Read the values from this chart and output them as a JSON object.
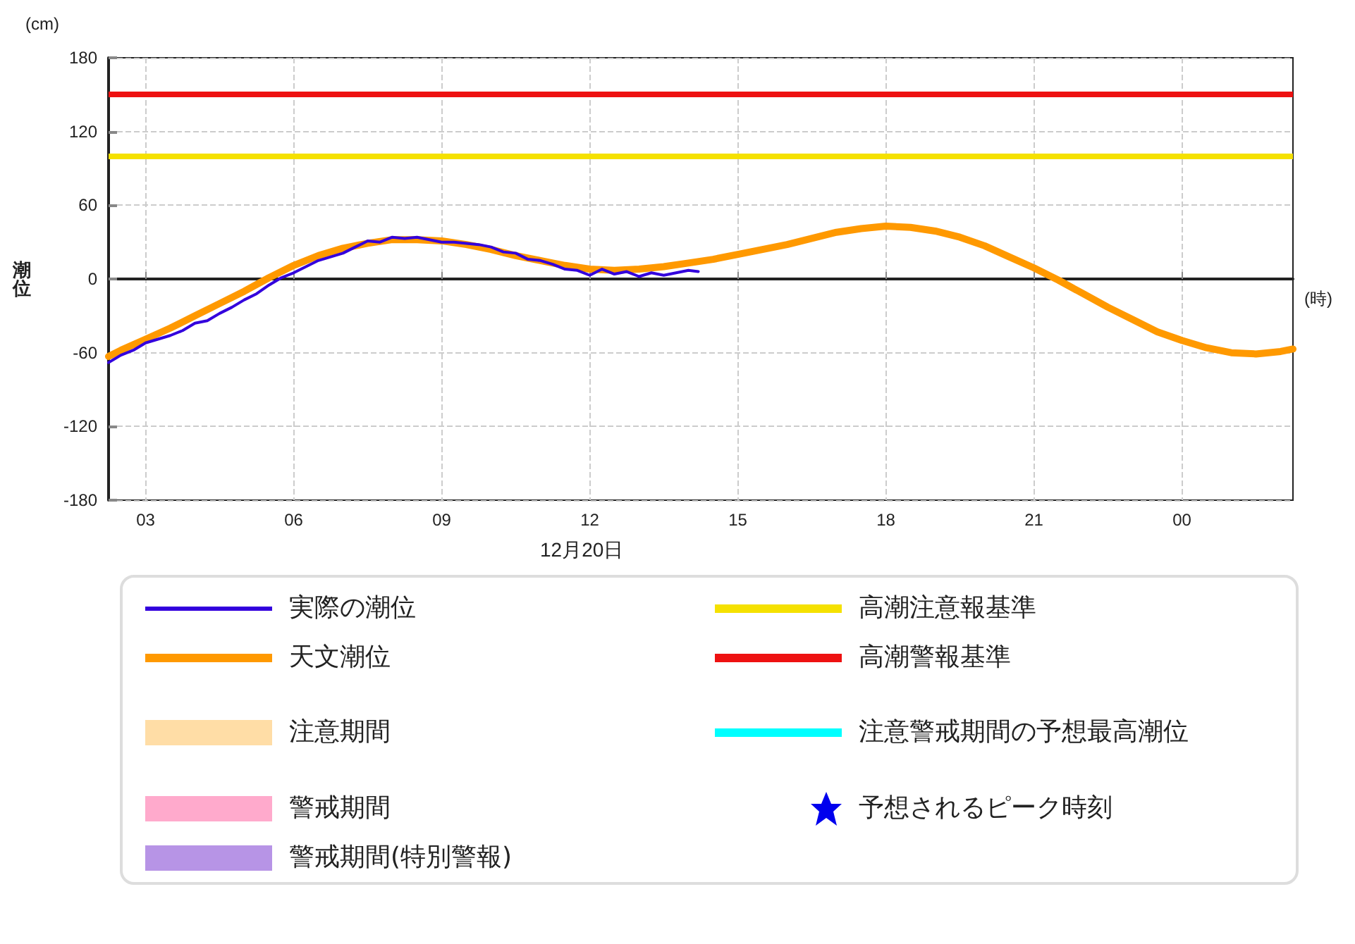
{
  "chart_data": {
    "type": "line",
    "xlabel": "(時)",
    "ylabel": "潮位",
    "annotations": [
      "(cm)",
      "12月20日"
    ],
    "xlim": [
      "--12-20T02:15",
      "--12-21T02:15"
    ],
    "xticks": [
      {
        "value": "--12-20T03:00",
        "label": "03"
      },
      {
        "value": "--12-20T06:00",
        "label": "06"
      },
      {
        "value": "--12-20T09:00",
        "label": "09"
      },
      {
        "value": "--12-20T12:00",
        "label": "12"
      },
      {
        "value": "--12-20T15:00",
        "label": "15"
      },
      {
        "value": "--12-20T18:00",
        "label": "18"
      },
      {
        "value": "--12-20T21:00",
        "label": "21"
      },
      {
        "value": "--12-21T00:00",
        "label": "00"
      }
    ],
    "ylim": [
      -180,
      180
    ],
    "yticks": [
      -180,
      -120,
      -60,
      0,
      60,
      120,
      180
    ],
    "grid": true,
    "legend": "bottom",
    "series": [
      {
        "name": "実際の潮位",
        "color": "#3300dd",
        "x": [
          "--12-20T02:15",
          "--12-20T02:30",
          "--12-20T02:45",
          "--12-20T03:00",
          "--12-20T03:15",
          "--12-20T03:30",
          "--12-20T03:45",
          "--12-20T04:00",
          "--12-20T04:15",
          "--12-20T04:30",
          "--12-20T04:45",
          "--12-20T05:00",
          "--12-20T05:15",
          "--12-20T05:30",
          "--12-20T05:45",
          "--12-20T06:00",
          "--12-20T06:15",
          "--12-20T06:30",
          "--12-20T06:45",
          "--12-20T07:00",
          "--12-20T07:15",
          "--12-20T07:30",
          "--12-20T07:45",
          "--12-20T08:00",
          "--12-20T08:15",
          "--12-20T08:30",
          "--12-20T08:45",
          "--12-20T09:00",
          "--12-20T09:15",
          "--12-20T09:30",
          "--12-20T09:45",
          "--12-20T10:00",
          "--12-20T10:15",
          "--12-20T10:30",
          "--12-20T10:45",
          "--12-20T11:00",
          "--12-20T11:15",
          "--12-20T11:30",
          "--12-20T11:45",
          "--12-20T12:00",
          "--12-20T12:15",
          "--12-20T12:30",
          "--12-20T12:45",
          "--12-20T13:00",
          "--12-20T13:15",
          "--12-20T13:30",
          "--12-20T13:45",
          "--12-20T14:00",
          "--12-20T14:12"
        ],
        "values": [
          -68,
          -62,
          -58,
          -52,
          -49,
          -46,
          -42,
          -36,
          -34,
          -28,
          -23,
          -17,
          -12,
          -5,
          1,
          5,
          10,
          15,
          18,
          21,
          26,
          31,
          30,
          34,
          33,
          34,
          32,
          30,
          30,
          29,
          28,
          26,
          22,
          21,
          16,
          15,
          12,
          8,
          7,
          3,
          8,
          4,
          6,
          2,
          5,
          3,
          5,
          7,
          6
        ]
      },
      {
        "name": "天文潮位",
        "color": "#ff9900",
        "x": [
          "--12-20T02:15",
          "--12-20T02:30",
          "--12-20T03:00",
          "--12-20T03:30",
          "--12-20T04:00",
          "--12-20T04:30",
          "--12-20T05:00",
          "--12-20T05:30",
          "--12-20T06:00",
          "--12-20T06:30",
          "--12-20T07:00",
          "--12-20T07:30",
          "--12-20T08:00",
          "--12-20T08:30",
          "--12-20T09:00",
          "--12-20T09:30",
          "--12-20T10:00",
          "--12-20T10:30",
          "--12-20T11:00",
          "--12-20T11:30",
          "--12-20T12:00",
          "--12-20T12:30",
          "--12-20T13:00",
          "--12-20T13:30",
          "--12-20T14:00",
          "--12-20T14:30",
          "--12-20T15:00",
          "--12-20T15:30",
          "--12-20T16:00",
          "--12-20T16:30",
          "--12-20T17:00",
          "--12-20T17:30",
          "--12-20T18:00",
          "--12-20T18:30",
          "--12-20T19:00",
          "--12-20T19:30",
          "--12-20T20:00",
          "--12-20T20:30",
          "--12-20T21:00",
          "--12-20T21:30",
          "--12-20T22:00",
          "--12-20T22:30",
          "--12-20T23:00",
          "--12-20T23:30",
          "--12-21T00:00",
          "--12-21T00:30",
          "--12-21T01:00",
          "--12-21T01:30",
          "--12-21T02:00",
          "--12-21T02:15"
        ],
        "values": [
          -63,
          -58,
          -49,
          -40,
          -30,
          -20,
          -10,
          1,
          11,
          19,
          25,
          29,
          32,
          32,
          31,
          28,
          24,
          19,
          15,
          11,
          8,
          7,
          8,
          10,
          13,
          16,
          20,
          24,
          28,
          33,
          38,
          41,
          43,
          42,
          39,
          34,
          27,
          18,
          9,
          -1,
          -12,
          -23,
          -33,
          -43,
          -50,
          -56,
          -60,
          -61,
          -59,
          -57
        ]
      },
      {
        "name": "注意期間",
        "color": "#ffdda6",
        "type": "bar"
      },
      {
        "name": "警戒期間",
        "color": "#ffaacc",
        "type": "bar"
      },
      {
        "name": "警戒期間(特別警報)",
        "color": "#b794e6",
        "type": "bar"
      },
      {
        "name": "注意警戒期間の予想最高潮位",
        "color": "#00ffff",
        "type": "line"
      },
      {
        "name": "予想されるピーク時刻",
        "color": "#0000ee",
        "type": "scatter",
        "marker": "star"
      }
    ],
    "ref_lines": [
      {
        "axis": "y",
        "value": 100,
        "label": "高潮注意報基準",
        "color": "#f5e100"
      },
      {
        "axis": "y",
        "value": 150,
        "label": "高潮警報基準",
        "color": "#ee1111"
      }
    ]
  }
}
